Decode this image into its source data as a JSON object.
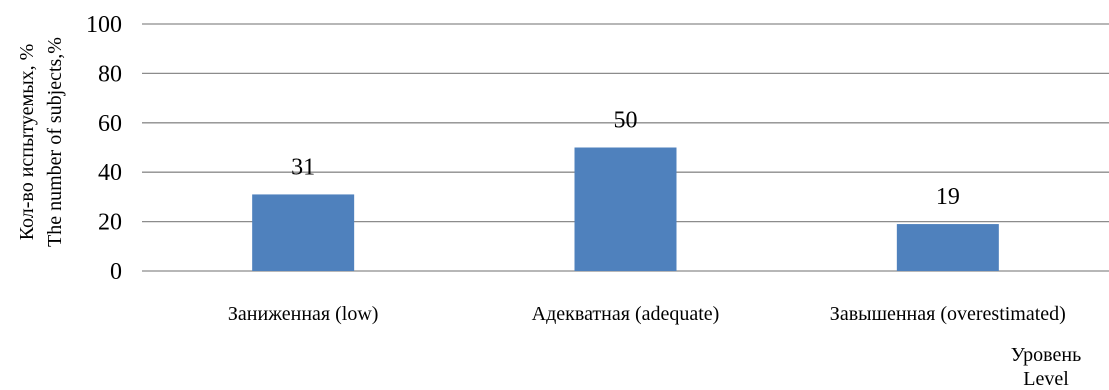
{
  "chart_data": {
    "type": "bar",
    "title": "",
    "categories": [
      "Заниженная (low)",
      "Адекватная (adequate)",
      "Завышенная (overestimated)"
    ],
    "series": [
      {
        "values": [
          31,
          50,
          19
        ]
      }
    ],
    "data_labels": [
      "31",
      "50",
      "19"
    ],
    "ylabel_lines": [
      "Кол-во испытуемых, %",
      "The number of subjects,%"
    ],
    "xlabel_lines": [
      "Уровень",
      "Level"
    ],
    "ylim": [
      0,
      100
    ],
    "yticks": [
      0,
      20,
      40,
      60,
      80,
      100
    ],
    "grid": true,
    "legend": "none",
    "colors": {
      "bar": "#4f81bd",
      "grid": "#8c8c8c",
      "text": "#000000"
    }
  }
}
